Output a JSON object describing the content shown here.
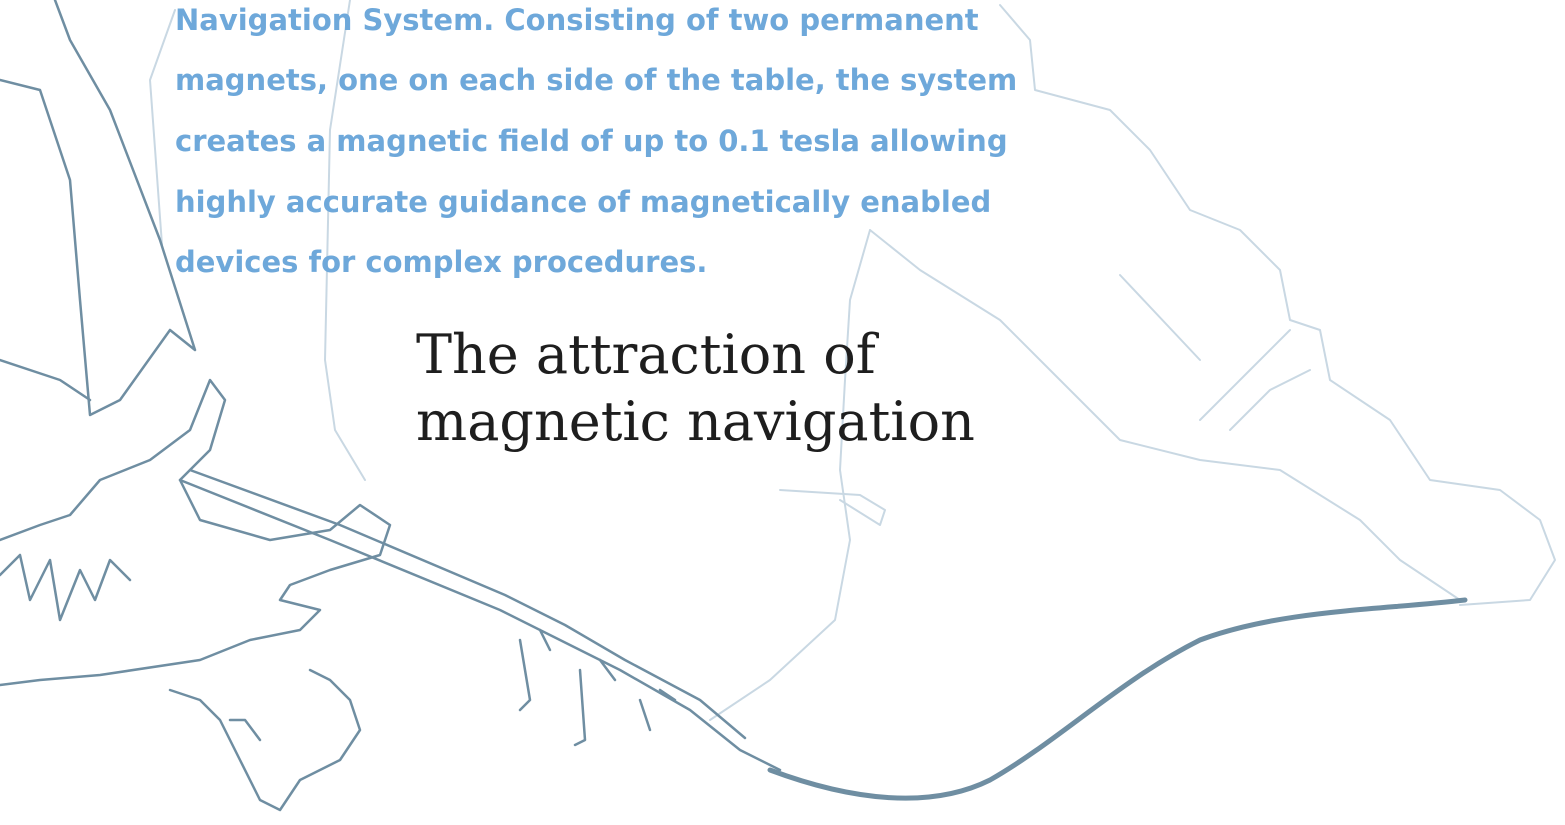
{
  "paragraph": {
    "lines": [
      "Navigation System. Consisting of two permanent",
      "magnets, one on each side of the table, the system",
      "creates a magnetic field of up to 0.1 tesla allowing",
      "highly accurate guidance of magnetically enabled",
      "devices for complex procedures."
    ]
  },
  "heading": {
    "lines": [
      "The attraction of",
      "magnetic navigation"
    ]
  }
}
